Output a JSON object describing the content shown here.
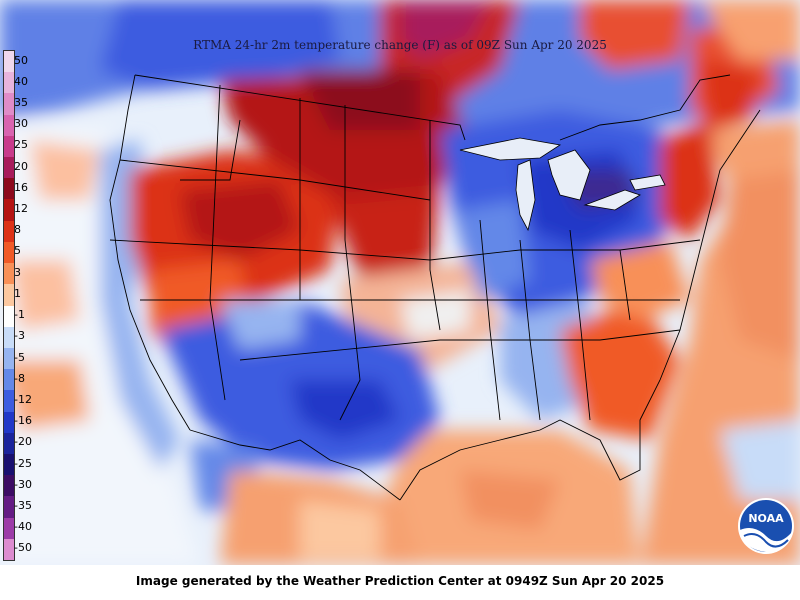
{
  "title": "RTMA 24-hr 2m temperature change (F) as of 09Z Sun Apr 20 2025",
  "footer": "Image generated by the Weather Prediction Center at 0949Z Sun Apr 20 2025",
  "logo_text": "NOAA",
  "legend": {
    "levels": [
      {
        "label": "50",
        "color": "#f0d8ec"
      },
      {
        "label": "40",
        "color": "#e8b4dc"
      },
      {
        "label": "35",
        "color": "#e08cc8"
      },
      {
        "label": "30",
        "color": "#d864b0"
      },
      {
        "label": "25",
        "color": "#c83c8c"
      },
      {
        "label": "20",
        "color": "#a81c5c"
      },
      {
        "label": "16",
        "color": "#8c0a1e"
      },
      {
        "label": "12",
        "color": "#b41414"
      },
      {
        "label": "8",
        "color": "#dc3218"
      },
      {
        "label": "5",
        "color": "#f05a28"
      },
      {
        "label": "3",
        "color": "#f89058"
      },
      {
        "label": "1",
        "color": "#fcc8a0"
      },
      {
        "label": "-1",
        "color": "#ffffff"
      },
      {
        "label": "-3",
        "color": "#c8dcf8"
      },
      {
        "label": "-5",
        "color": "#96b4f0"
      },
      {
        "label": "-8",
        "color": "#6488e8"
      },
      {
        "label": "-12",
        "color": "#3c5ce0"
      },
      {
        "label": "-16",
        "color": "#2038c8"
      },
      {
        "label": "-20",
        "color": "#1a249c"
      },
      {
        "label": "-25",
        "color": "#181070"
      },
      {
        "label": "-30",
        "color": "#3c0c64"
      },
      {
        "label": "-35",
        "color": "#641c84"
      },
      {
        "label": "-40",
        "color": "#9c3ca8"
      },
      {
        "label": "-50",
        "color": "#dc8cd0"
      }
    ]
  }
}
